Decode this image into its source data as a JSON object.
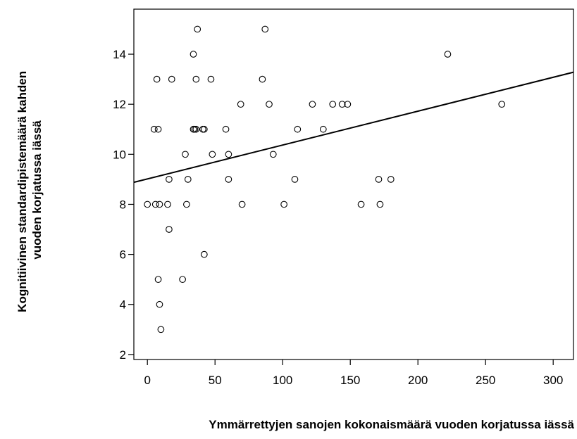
{
  "chart_data": {
    "type": "scatter",
    "xlabel": "Ymmärrettyjen sanojen kokonaismäärä vuoden korjatussa iässä",
    "ylabel_lines": [
      "Kognitiivinen standardipistemäärä kahden",
      "vuoden korjatussa iässä"
    ],
    "xlim": [
      -10,
      315
    ],
    "ylim": [
      1.8,
      15.8
    ],
    "x_ticks": [
      0,
      50,
      100,
      150,
      200,
      250,
      300
    ],
    "x_tick_labels": [
      "0",
      "50",
      "100",
      "150",
      "200",
      "250",
      "300"
    ],
    "y_ticks": [
      2,
      4,
      6,
      8,
      10,
      12,
      14
    ],
    "y_tick_labels": [
      "2",
      "4",
      "6",
      "8",
      "10",
      "12",
      "14"
    ],
    "grid": false,
    "marker": "open-circle",
    "points": [
      {
        "x": 0,
        "y": 8
      },
      {
        "x": 5,
        "y": 11
      },
      {
        "x": 6,
        "y": 8
      },
      {
        "x": 7,
        "y": 13
      },
      {
        "x": 8,
        "y": 11
      },
      {
        "x": 8,
        "y": 5
      },
      {
        "x": 9,
        "y": 8
      },
      {
        "x": 9,
        "y": 4
      },
      {
        "x": 10,
        "y": 3
      },
      {
        "x": 15,
        "y": 8
      },
      {
        "x": 16,
        "y": 9
      },
      {
        "x": 16,
        "y": 7
      },
      {
        "x": 18,
        "y": 13
      },
      {
        "x": 26,
        "y": 5
      },
      {
        "x": 28,
        "y": 10
      },
      {
        "x": 29,
        "y": 8
      },
      {
        "x": 30,
        "y": 9
      },
      {
        "x": 34,
        "y": 14
      },
      {
        "x": 34,
        "y": 11
      },
      {
        "x": 35,
        "y": 11
      },
      {
        "x": 36,
        "y": 11
      },
      {
        "x": 36,
        "y": 13
      },
      {
        "x": 37,
        "y": 15
      },
      {
        "x": 41,
        "y": 11
      },
      {
        "x": 42,
        "y": 11
      },
      {
        "x": 42,
        "y": 6
      },
      {
        "x": 47,
        "y": 13
      },
      {
        "x": 48,
        "y": 10
      },
      {
        "x": 58,
        "y": 11
      },
      {
        "x": 60,
        "y": 10
      },
      {
        "x": 60,
        "y": 9
      },
      {
        "x": 69,
        "y": 12
      },
      {
        "x": 70,
        "y": 8
      },
      {
        "x": 85,
        "y": 13
      },
      {
        "x": 87,
        "y": 15
      },
      {
        "x": 90,
        "y": 12
      },
      {
        "x": 93,
        "y": 10
      },
      {
        "x": 101,
        "y": 8
      },
      {
        "x": 109,
        "y": 9
      },
      {
        "x": 111,
        "y": 11
      },
      {
        "x": 122,
        "y": 12
      },
      {
        "x": 130,
        "y": 11
      },
      {
        "x": 137,
        "y": 12
      },
      {
        "x": 144,
        "y": 12
      },
      {
        "x": 148,
        "y": 12
      },
      {
        "x": 158,
        "y": 8
      },
      {
        "x": 171,
        "y": 9
      },
      {
        "x": 172,
        "y": 8
      },
      {
        "x": 180,
        "y": 9
      },
      {
        "x": 222,
        "y": 14
      },
      {
        "x": 262,
        "y": 12
      }
    ],
    "fit_line": {
      "x": [
        -10,
        315
      ],
      "y": [
        8.88,
        13.28
      ]
    }
  }
}
